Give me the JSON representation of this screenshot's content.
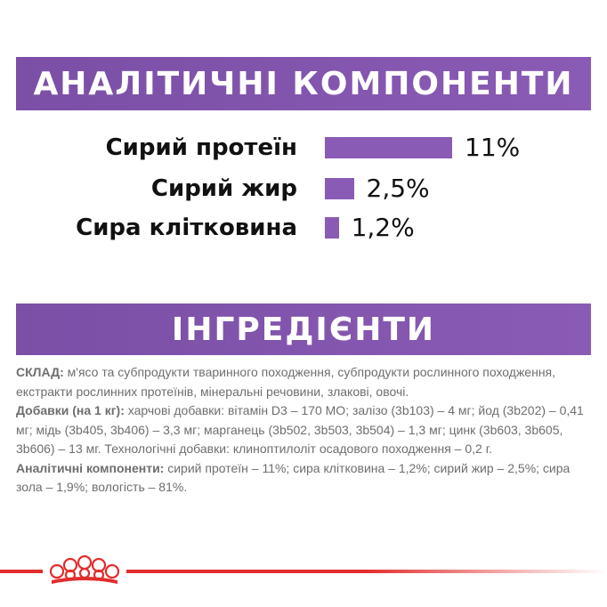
{
  "colors": {
    "purple": "#8a5bb5",
    "red": "#e32c2c",
    "text_dark": "#111111",
    "text_grey": "#6e6e6e"
  },
  "analytic": {
    "title": "АНАЛІТИЧНІ КОМПОНЕНТИ",
    "rows": [
      {
        "label": "Сирий протеїн",
        "value": "11%",
        "percent": 11
      },
      {
        "label": "Сирий жир",
        "value": "2,5%",
        "percent": 2.5
      },
      {
        "label": "Сира клітковина",
        "value": "1,2%",
        "percent": 1.2
      }
    ]
  },
  "ingredients": {
    "title": "ІНГРЕДІЄНТИ",
    "composition_label": "СКЛАД:",
    "composition_text": " м'ясо та субпродукти тваринного походження, субпродукти рослинного походження, екстракти рослинних протеїнів, мінеральні речовини, злакові, овочі.",
    "additives_label": "Добавки (на 1 кг):",
    "additives_text": " харчові добавки: вітамін D3 – 170 МО; залізо (3b103) – 4 мг; йод (3b202) – 0,41 мг; мідь (3b405, 3b406) – 3,3 мг; марганець (3b502, 3b503, 3b504) – 1,3 мг; цинк (3b603, 3b605, 3b606) – 13 мг. Технологічні добавки: клиноптилоліт осадового походження – 0,2 г.",
    "analytic_label": "Аналітичні компоненти:",
    "analytic_text": " сирий протеїн – 11%; сира клітковина – 1,2%; сирий жир – 2,5%; сира зола – 1,9%; вологість – 81%."
  },
  "footer": {
    "logo_icon": "royal-canin-crown-icon"
  }
}
